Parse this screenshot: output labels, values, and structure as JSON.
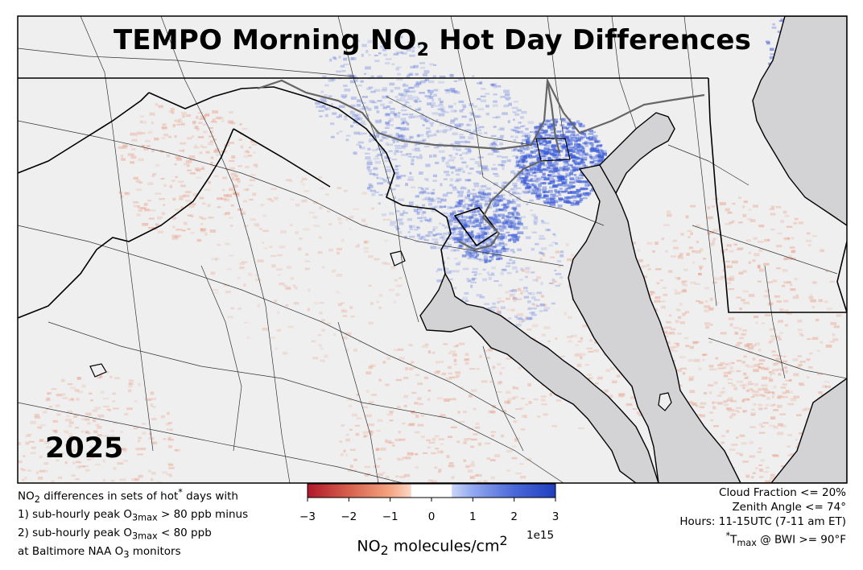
{
  "title": {
    "prefix": "TEMPO Morning NO",
    "sub": "2",
    "suffix": " Hot Day Differences"
  },
  "year": "2025",
  "notes_left": {
    "line1_a": "NO",
    "line1_sub": "2",
    "line1_b": " differences in sets of hot",
    "line1_sup": "*",
    "line1_c": " days with",
    "line2_a": "1) sub-hourly peak O",
    "line2_sub": "3max",
    "line2_b": " > 80 ppb minus",
    "line3_a": "2) sub-hourly peak O",
    "line3_sub": "3max",
    "line3_b": " < 80 ppb",
    "line4_a": "at Baltimore NAA O",
    "line4_sub": "3",
    "line4_b": " monitors"
  },
  "notes_right": {
    "line1": "Cloud Fraction <= 20%",
    "line2": "Zenith Angle <= 74°",
    "line3": "Hours: 11-15UTC (7-11 am ET)",
    "line4_sup": "*",
    "line4_a": "T",
    "line4_sub": "max",
    "line4_b": " @ BWI >= 90°F"
  },
  "colorbar": {
    "label_a": "NO",
    "label_sub": "2",
    "label_b": " molecules/cm",
    "label_sup": "2",
    "exponent": "1e15",
    "ticks": [
      "−3",
      "−2",
      "−1",
      "0",
      "1",
      "2",
      "3"
    ],
    "range": [
      -3,
      3
    ],
    "colors": [
      "#b2182b",
      "#d6604d",
      "#f4a582",
      "#ffffff",
      "#92a8f0",
      "#4a68d8",
      "#1f3fbf"
    ]
  },
  "colors": {
    "land": "#efefef",
    "water": "#d3d3d6",
    "increase": "#3e5ed8",
    "decrease": "#e8957a"
  }
}
